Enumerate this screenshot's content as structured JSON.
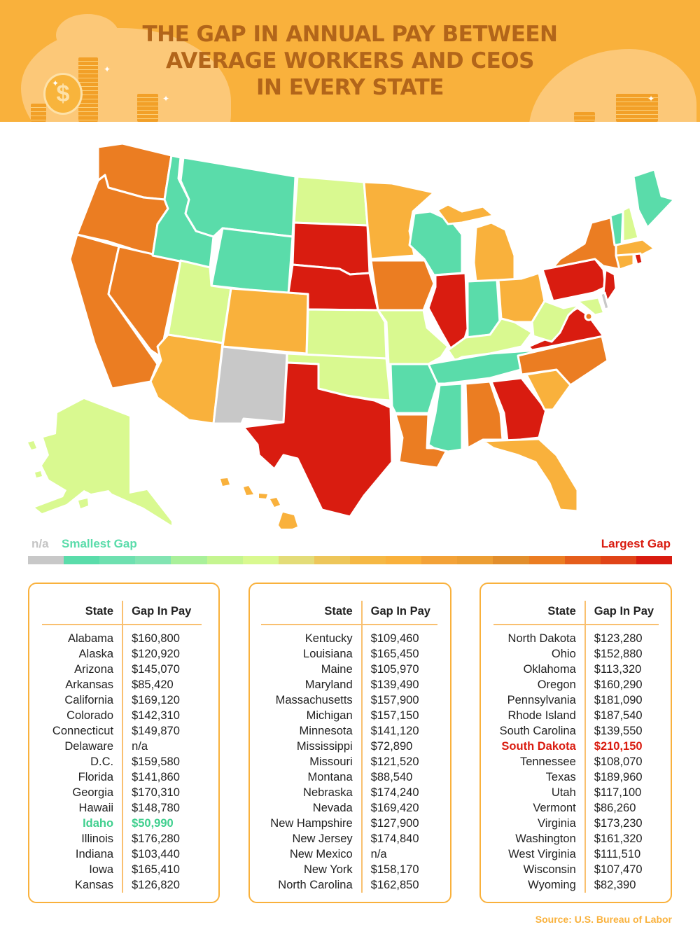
{
  "header": {
    "title_lines": [
      "THE GAP IN ANNUAL PAY BETWEEN",
      "AVERAGE WORKERS AND CEOS",
      "IN EVERY STATE"
    ],
    "background_color": "#f9b13c",
    "title_color": "#b2651a",
    "decoration": [
      "coin-stack-icon",
      "dollar-coin-icon",
      "sparkle-icon"
    ]
  },
  "legend": {
    "na_label": "n/a",
    "smallest_label": "Smallest Gap",
    "largest_label": "Largest Gap",
    "na_color": "#c8c8c8",
    "gradient": [
      "#5adcaa",
      "#6ee0b0",
      "#82e4b2",
      "#a9f09a",
      "#c5f590",
      "#d9f990",
      "#e3dc78",
      "#edc65a",
      "#f5b844",
      "#f9b13c",
      "#f3a238",
      "#ec9e34",
      "#e28e2c",
      "#eb7d22",
      "#e55e1c",
      "#e04418",
      "#d91c10"
    ]
  },
  "colors": {
    "teal": "#5adcaa",
    "light_green": "#d9f990",
    "amber": "#f9b13c",
    "orange": "#eb7d22",
    "red": "#d91c10",
    "gray": "#c8c8c8"
  },
  "table_headers": {
    "state": "State",
    "gap": "Gap In Pay"
  },
  "columns": [
    [
      {
        "state": "Alabama",
        "gap": "$160,800"
      },
      {
        "state": "Alaska",
        "gap": "$120,920"
      },
      {
        "state": "Arizona",
        "gap": "$145,070"
      },
      {
        "state": "Arkansas",
        "gap": "$85,420"
      },
      {
        "state": "California",
        "gap": "$169,120"
      },
      {
        "state": "Colorado",
        "gap": "$142,310"
      },
      {
        "state": "Connecticut",
        "gap": "$149,870"
      },
      {
        "state": "Delaware",
        "gap": "n/a"
      },
      {
        "state": "D.C.",
        "gap": "$159,580"
      },
      {
        "state": "Florida",
        "gap": "$141,860"
      },
      {
        "state": "Georgia",
        "gap": "$170,310"
      },
      {
        "state": "Hawaii",
        "gap": "$148,780"
      },
      {
        "state": "Idaho",
        "gap": "$50,990",
        "highlight": "smallest"
      },
      {
        "state": "Illinois",
        "gap": "$176,280"
      },
      {
        "state": "Indiana",
        "gap": "$103,440"
      },
      {
        "state": "Iowa",
        "gap": "$165,410"
      },
      {
        "state": "Kansas",
        "gap": "$126,820"
      }
    ],
    [
      {
        "state": "Kentucky",
        "gap": "$109,460"
      },
      {
        "state": "Louisiana",
        "gap": "$165,450"
      },
      {
        "state": "Maine",
        "gap": "$105,970"
      },
      {
        "state": "Maryland",
        "gap": "$139,490"
      },
      {
        "state": "Massachusetts",
        "gap": "$157,900"
      },
      {
        "state": "Michigan",
        "gap": "$157,150"
      },
      {
        "state": "Minnesota",
        "gap": "$141,120"
      },
      {
        "state": "Mississippi",
        "gap": "$72,890"
      },
      {
        "state": "Missouri",
        "gap": "$121,520"
      },
      {
        "state": "Montana",
        "gap": "$88,540"
      },
      {
        "state": "Nebraska",
        "gap": "$174,240"
      },
      {
        "state": "Nevada",
        "gap": "$169,420"
      },
      {
        "state": "New Hampshire",
        "gap": "$127,900"
      },
      {
        "state": "New Jersey",
        "gap": "$174,840"
      },
      {
        "state": "New Mexico",
        "gap": "n/a"
      },
      {
        "state": "New York",
        "gap": "$158,170"
      },
      {
        "state": "North Carolina",
        "gap": "$162,850"
      }
    ],
    [
      {
        "state": "North Dakota",
        "gap": "$123,280"
      },
      {
        "state": "Ohio",
        "gap": "$152,880"
      },
      {
        "state": "Oklahoma",
        "gap": "$113,320"
      },
      {
        "state": "Oregon",
        "gap": "$160,290"
      },
      {
        "state": "Pennsylvania",
        "gap": "$181,090"
      },
      {
        "state": "Rhode Island",
        "gap": "$187,540"
      },
      {
        "state": "South Carolina",
        "gap": "$139,550"
      },
      {
        "state": "South Dakota",
        "gap": "$210,150",
        "highlight": "largest"
      },
      {
        "state": "Tennessee",
        "gap": "$108,070"
      },
      {
        "state": "Texas",
        "gap": "$189,960"
      },
      {
        "state": "Utah",
        "gap": "$117,100"
      },
      {
        "state": "Vermont",
        "gap": "$86,260"
      },
      {
        "state": "Virginia",
        "gap": "$173,230"
      },
      {
        "state": "Washington",
        "gap": "$161,320"
      },
      {
        "state": "West Virginia",
        "gap": "$111,510"
      },
      {
        "state": "Wisconsin",
        "gap": "$107,470"
      },
      {
        "state": "Wyoming",
        "gap": "$82,390"
      }
    ]
  ],
  "source": "Source: U.S. Bureau of Labor",
  "chart_data": {
    "type": "table",
    "title": "The Gap in Annual Pay Between Average Workers and CEOs in Every State",
    "subtitle": "Choropleth map of US states colored from Smallest Gap (teal) to Largest Gap (red); n/a in gray",
    "xlabel": "State",
    "ylabel": "Gap In Pay (USD)",
    "legend": {
      "n/a": "#c8c8c8",
      "Smallest Gap": "#5adcaa",
      "Largest Gap": "#d91c10"
    },
    "categories": [
      "Alabama",
      "Alaska",
      "Arizona",
      "Arkansas",
      "California",
      "Colorado",
      "Connecticut",
      "Delaware",
      "D.C.",
      "Florida",
      "Georgia",
      "Hawaii",
      "Idaho",
      "Illinois",
      "Indiana",
      "Iowa",
      "Kansas",
      "Kentucky",
      "Louisiana",
      "Maine",
      "Maryland",
      "Massachusetts",
      "Michigan",
      "Minnesota",
      "Mississippi",
      "Missouri",
      "Montana",
      "Nebraska",
      "Nevada",
      "New Hampshire",
      "New Jersey",
      "New Mexico",
      "New York",
      "North Carolina",
      "North Dakota",
      "Ohio",
      "Oklahoma",
      "Oregon",
      "Pennsylvania",
      "Rhode Island",
      "South Carolina",
      "South Dakota",
      "Tennessee",
      "Texas",
      "Utah",
      "Vermont",
      "Virginia",
      "Washington",
      "West Virginia",
      "Wisconsin",
      "Wyoming"
    ],
    "values": [
      160800,
      120920,
      145070,
      85420,
      169120,
      142310,
      149870,
      null,
      159580,
      141860,
      170310,
      148780,
      50990,
      176280,
      103440,
      165410,
      126820,
      109460,
      165450,
      105970,
      139490,
      157900,
      157150,
      141120,
      72890,
      121520,
      88540,
      174240,
      169420,
      127900,
      174840,
      null,
      158170,
      162850,
      123280,
      152880,
      113320,
      160290,
      181090,
      187540,
      139550,
      210150,
      108070,
      189960,
      117100,
      86260,
      173230,
      161320,
      111510,
      107470,
      82390
    ],
    "smallest": {
      "state": "Idaho",
      "value": 50990
    },
    "largest": {
      "state": "South Dakota",
      "value": 210150
    },
    "source": "U.S. Bureau of Labor"
  }
}
